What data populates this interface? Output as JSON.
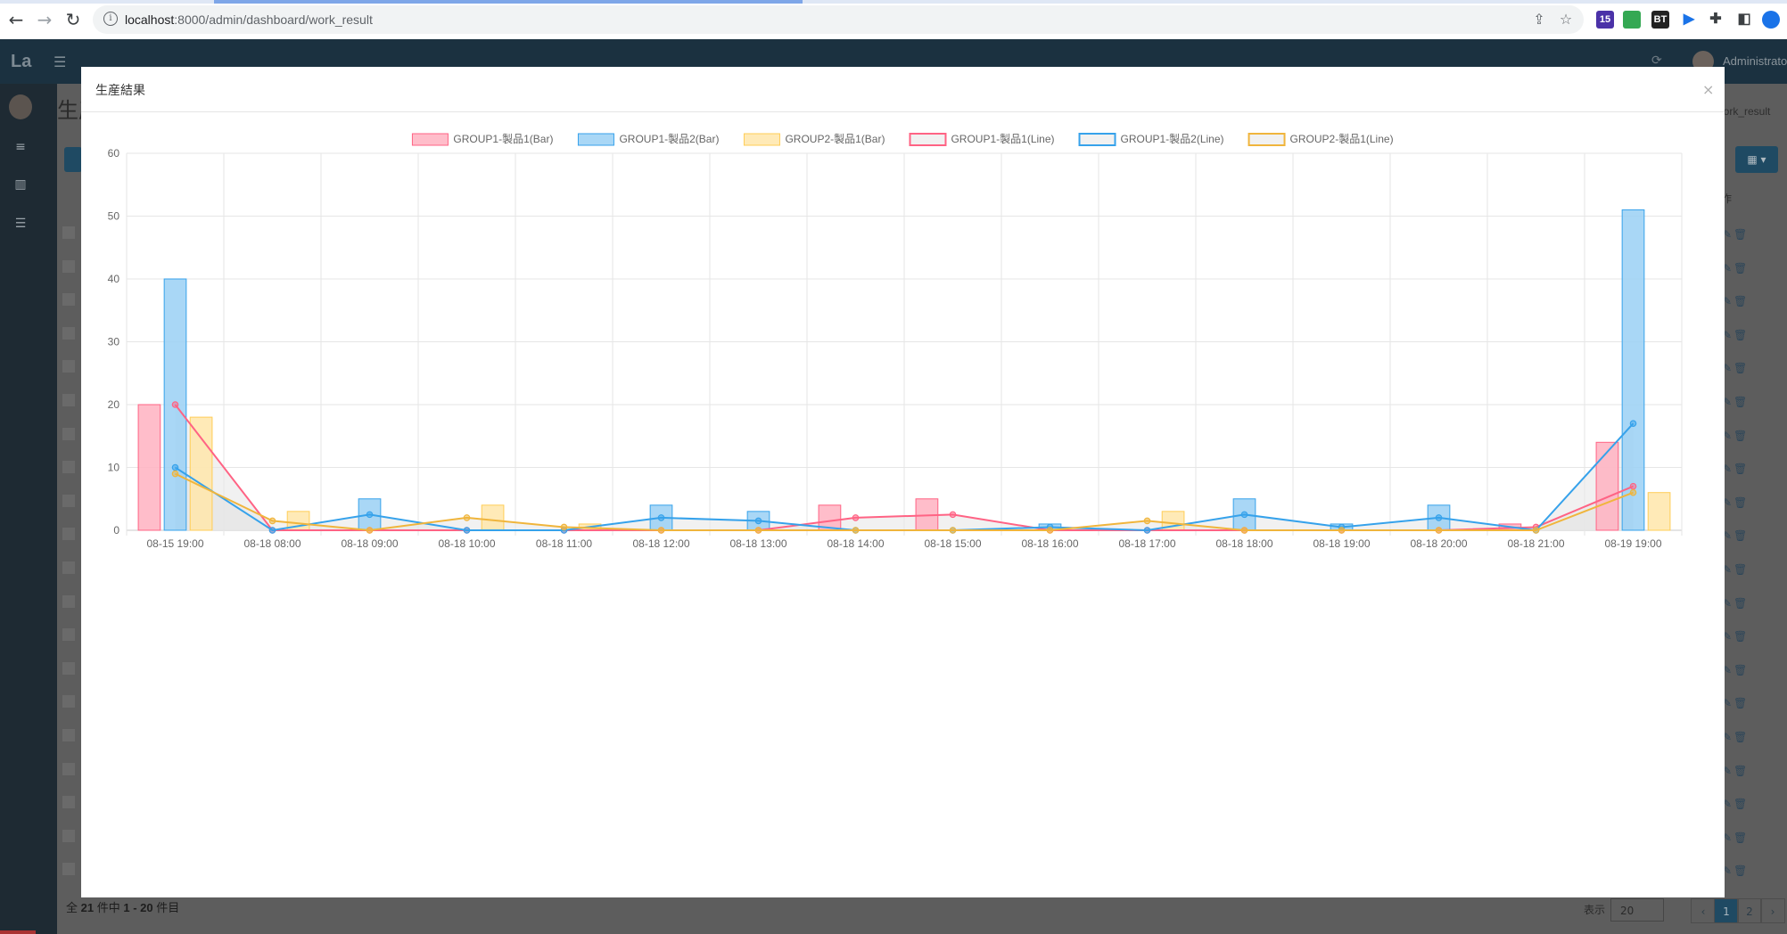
{
  "browser": {
    "url_host": "localhost",
    "url_path": ":8000/admin/dashboard/work_result",
    "ext_badges": [
      "15",
      "",
      "BT"
    ]
  },
  "app": {
    "logo": "La",
    "user_name": "Administrator",
    "page_title": "生産",
    "breadcrumb": "work_result",
    "op_column": "作",
    "footer": {
      "prefix": "全",
      "total": "21",
      "mid": "件中",
      "range": "1 - 20",
      "suffix": "件目"
    },
    "per_page_label": "表示",
    "per_page_value": "20",
    "pages": [
      "‹",
      "1",
      "2",
      "›"
    ]
  },
  "modal": {
    "title": "生産結果",
    "close_label": "×"
  },
  "chart_data": {
    "type": "bar",
    "categories": [
      "08-15 19:00",
      "08-18 08:00",
      "08-18 09:00",
      "08-18 10:00",
      "08-18 11:00",
      "08-18 12:00",
      "08-18 13:00",
      "08-18 14:00",
      "08-18 15:00",
      "08-18 16:00",
      "08-18 17:00",
      "08-18 18:00",
      "08-18 19:00",
      "08-18 20:00",
      "08-18 21:00",
      "08-19 19:00"
    ],
    "ylim": [
      0,
      60
    ],
    "yticks": [
      0,
      10,
      20,
      30,
      40,
      50,
      60
    ],
    "grid": true,
    "legend_position": "top",
    "series": [
      {
        "name": "GROUP1-製品1(Bar)",
        "kind": "bar",
        "fill": "#ffb1c1",
        "stroke": "#ff6384",
        "values": [
          20,
          0,
          0,
          0,
          0,
          0,
          0,
          4,
          5,
          0,
          0,
          0,
          0,
          0,
          1,
          14
        ]
      },
      {
        "name": "GROUP1-製品2(Bar)",
        "kind": "bar",
        "fill": "#9ad0f5",
        "stroke": "#36a2eb",
        "values": [
          40,
          0,
          5,
          0,
          0,
          4,
          3,
          0,
          0,
          1,
          0,
          5,
          1,
          4,
          0,
          51
        ]
      },
      {
        "name": "GROUP2-製品1(Bar)",
        "kind": "bar",
        "fill": "#ffe6aa",
        "stroke": "#ffcd56",
        "values": [
          18,
          3,
          0,
          4,
          1,
          0,
          0,
          0,
          0,
          0,
          3,
          0,
          0,
          0,
          0,
          6
        ]
      },
      {
        "name": "GROUP1-製品1(Line)",
        "kind": "line",
        "fill": "#e6e6e6",
        "stroke": "#ff6384",
        "values": [
          20,
          0,
          0,
          0,
          0,
          0,
          0,
          2,
          2.5,
          0,
          0,
          0,
          0,
          0,
          0.5,
          7
        ]
      },
      {
        "name": "GROUP1-製品2(Line)",
        "kind": "line",
        "fill": "#e6e6e6",
        "stroke": "#36a2eb",
        "values": [
          10,
          0,
          2.5,
          0,
          0,
          2,
          1.5,
          0,
          0,
          0.5,
          0,
          2.5,
          0.5,
          2,
          0,
          17
        ]
      },
      {
        "name": "GROUP2-製品1(Line)",
        "kind": "line",
        "fill": "#e6e6e6",
        "stroke": "#f0b53c",
        "values": [
          9,
          1.5,
          0,
          2,
          0.5,
          0,
          0,
          0,
          0,
          0,
          1.5,
          0,
          0,
          0,
          0,
          6
        ]
      }
    ]
  }
}
